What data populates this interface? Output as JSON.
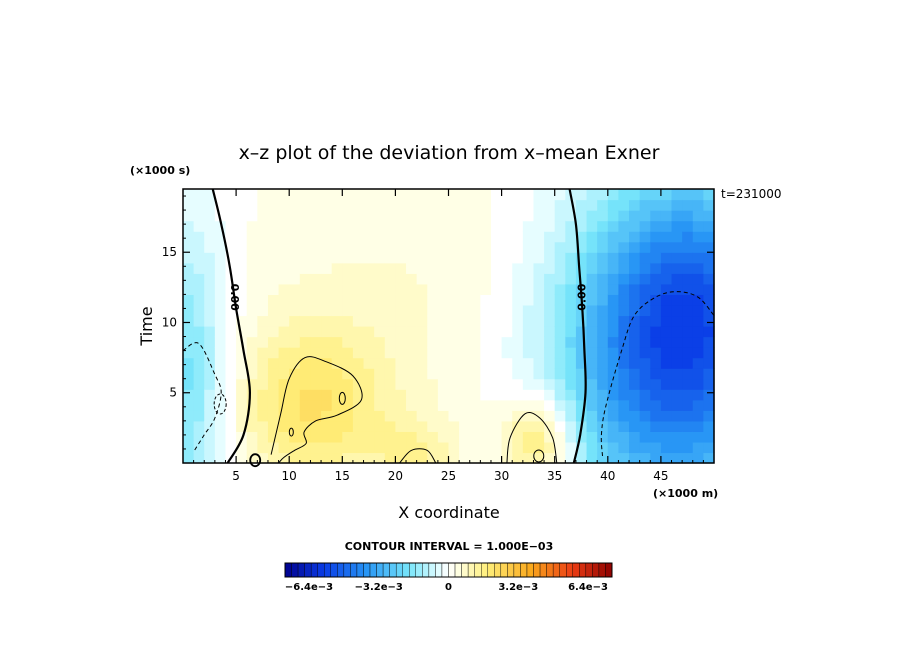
{
  "chart_data": {
    "type": "heatmap",
    "title": "x–z plot of the deviation from x–mean Exner",
    "xlabel": "X coordinate",
    "ylabel": "Time",
    "x_unit": "(×1000 m)",
    "y_unit": "(×1000 s)",
    "time_label": "t=231000",
    "xlim": [
      0,
      50
    ],
    "ylim": [
      0,
      19.5
    ],
    "x_ticks": [
      5,
      10,
      15,
      20,
      25,
      30,
      35,
      40,
      45
    ],
    "y_ticks": [
      5,
      10,
      15
    ],
    "contour_interval_label": "CONTOUR INTERVAL = 1.000E−03",
    "zero_contour_labels": [
      "0.00",
      "0.00"
    ],
    "colorbar": {
      "min": -0.0075,
      "max": 0.0075,
      "tick_labels": [
        "−6.4e−3",
        "−3.2e−3",
        "0",
        "3.2e−3",
        "6.4e−3"
      ],
      "tick_values": [
        -0.0064,
        -0.0032,
        0,
        0.0032,
        0.0064
      ]
    },
    "zero_contours": [
      {
        "points": [
          [
            2.8,
            19.5
          ],
          [
            3.6,
            17
          ],
          [
            4.4,
            14
          ],
          [
            5.0,
            11
          ],
          [
            5.7,
            8
          ],
          [
            6.3,
            5
          ],
          [
            5.7,
            2
          ],
          [
            4.2,
            0
          ]
        ]
      },
      {
        "points": [
          [
            36.4,
            19.5
          ],
          [
            37.0,
            17
          ],
          [
            37.3,
            14
          ],
          [
            37.6,
            11
          ],
          [
            37.8,
            8
          ],
          [
            37.9,
            5
          ],
          [
            37.4,
            2
          ],
          [
            36.8,
            0
          ]
        ]
      }
    ],
    "positive_contours": [
      {
        "points": [
          [
            8.3,
            0.6
          ],
          [
            9.2,
            3.5
          ],
          [
            10,
            6
          ],
          [
            11.5,
            7.5
          ],
          [
            13.5,
            7.2
          ],
          [
            16,
            6.2
          ],
          [
            16.8,
            4.5
          ],
          [
            14.5,
            3.4
          ],
          [
            12.5,
            3.0
          ],
          [
            11.4,
            2.2
          ],
          [
            11.6,
            1.4
          ],
          [
            10.5,
            0.9
          ],
          [
            9.5,
            0.4
          ],
          [
            9.0,
            0
          ]
        ]
      },
      {
        "points": [
          [
            30.5,
            0
          ],
          [
            30.8,
            1.8
          ],
          [
            32.2,
            3.5
          ],
          [
            33.6,
            3.2
          ],
          [
            34.8,
            1.8
          ],
          [
            35.2,
            0
          ]
        ]
      },
      {
        "points": [
          [
            20.4,
            0
          ],
          [
            21.5,
            0.9
          ],
          [
            23.0,
            0.9
          ],
          [
            23.8,
            0
          ]
        ]
      }
    ],
    "negative_contours": [
      {
        "points": [
          [
            0,
            8
          ],
          [
            1.5,
            8.5
          ],
          [
            3.0,
            6.3
          ],
          [
            3.6,
            5.0
          ],
          [
            3.0,
            3.2
          ],
          [
            2.0,
            2.0
          ],
          [
            1.0,
            0.8
          ]
        ]
      },
      {
        "points": [
          [
            39.5,
            0.5
          ],
          [
            39.4,
            2
          ],
          [
            39.8,
            4
          ],
          [
            41.3,
            8
          ],
          [
            42.5,
            10.5
          ],
          [
            44.5,
            11.8
          ],
          [
            46.5,
            12.2
          ],
          [
            48.5,
            11.8
          ],
          [
            50,
            10.5
          ]
        ]
      }
    ],
    "field": {
      "blobs": [
        {
          "x": 46,
          "y": 7,
          "sx": 8,
          "sy": 8,
          "amp": -0.0045
        },
        {
          "x": 48,
          "y": 13,
          "sx": 6,
          "sy": 6,
          "amp": -0.002
        },
        {
          "x": 0,
          "y": 6,
          "sx": 3,
          "sy": 8,
          "amp": -0.002
        },
        {
          "x": 12,
          "y": 4,
          "sx": 5,
          "sy": 4,
          "amp": 0.0018
        },
        {
          "x": 33.5,
          "y": 1.5,
          "sx": 2.5,
          "sy": 2.5,
          "amp": 0.0022
        },
        {
          "x": 22,
          "y": 0.5,
          "sx": 3,
          "sy": 2,
          "amp": 0.001
        },
        {
          "x": 22,
          "y": 11,
          "sx": 14,
          "sy": 9,
          "amp": 0.0006
        }
      ]
    }
  }
}
